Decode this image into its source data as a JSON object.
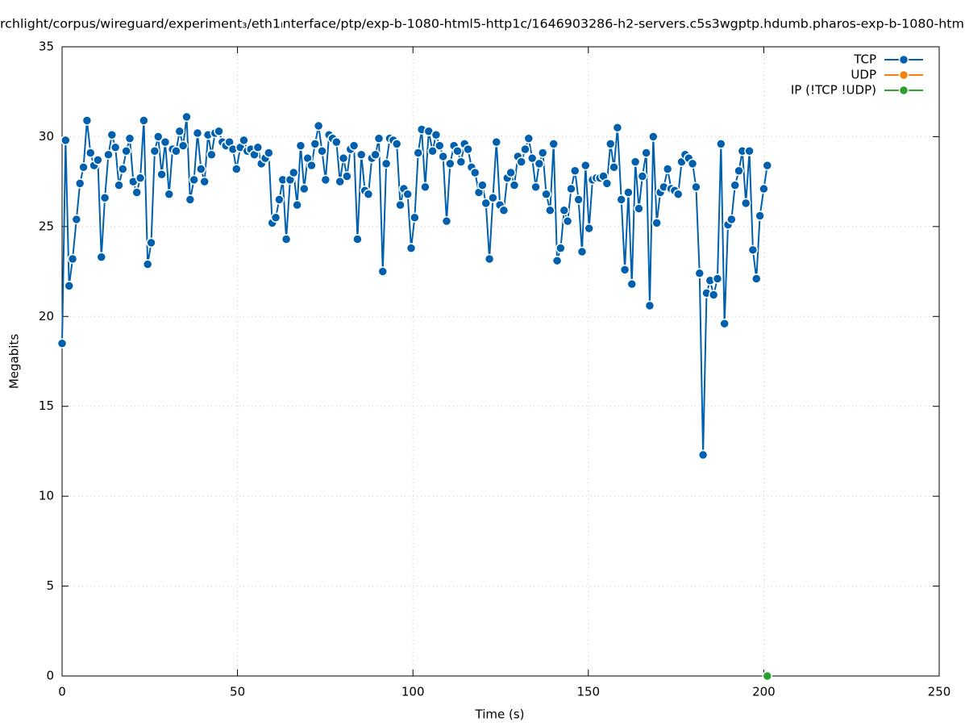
{
  "chart_data": {
    "type": "line",
    "title": "rchlight/corpus/wireguard/experiment₃/eth1ₗnterface/ptp/exp-b-1080-html5-http1c/1646903286-h2-servers.c5s3wgptp.hdumb.pharos-exp-b-1080-htm",
    "x_label": "Time (s)",
    "y_label": "Megabits",
    "xlim": [
      0,
      250
    ],
    "xticks": [
      0,
      50,
      100,
      150,
      200,
      250
    ],
    "ylim": [
      0,
      35
    ],
    "yticks": [
      0,
      5,
      10,
      15,
      20,
      25,
      30,
      35
    ],
    "grid": true,
    "legend": "top-right",
    "series": [
      {
        "name": "TCP",
        "color": "#0060ad",
        "x": [
          0,
          1,
          2,
          3,
          4.1,
          5.1,
          6.1,
          7.1,
          8.1,
          9.1,
          10.2,
          11.2,
          12.2,
          13.2,
          14.2,
          15.2,
          16.2,
          17.3,
          18.3,
          19.3,
          20.3,
          21.3,
          22.3,
          23.3,
          24.4,
          25.4,
          26.4,
          27.4,
          28.4,
          29.4,
          30.5,
          31.5,
          32.5,
          33.5,
          34.5,
          35.5,
          36.5,
          37.6,
          38.6,
          39.6,
          40.6,
          41.6,
          42.6,
          43.6,
          44.7,
          45.7,
          46.7,
          47.7,
          48.7,
          49.7,
          50.8,
          51.8,
          52.8,
          53.8,
          54.8,
          55.8,
          56.8,
          57.9,
          58.9,
          59.9,
          60.9,
          61.9,
          62.9,
          63.9,
          65.0,
          66.0,
          67.0,
          68.0,
          69.0,
          70.0,
          71.1,
          72.1,
          73.1,
          74.1,
          75.1,
          76.1,
          77.1,
          78.2,
          79.2,
          80.2,
          81.2,
          82.2,
          83.2,
          84.2,
          85.3,
          86.3,
          87.3,
          88.3,
          89.3,
          90.3,
          91.4,
          92.4,
          93.4,
          94.4,
          95.4,
          96.4,
          97.4,
          98.5,
          99.5,
          100.5,
          101.5,
          102.5,
          103.5,
          104.5,
          105.6,
          106.6,
          107.6,
          108.6,
          109.6,
          110.6,
          111.7,
          112.7,
          113.7,
          114.7,
          115.7,
          116.7,
          117.7,
          118.8,
          119.8,
          120.8,
          121.8,
          122.8,
          123.8,
          124.8,
          125.9,
          126.9,
          127.9,
          128.9,
          129.9,
          130.9,
          132.0,
          133.0,
          134.0,
          135.0,
          136.0,
          137.0,
          138.0,
          139.1,
          140.1,
          141.1,
          142.1,
          143.1,
          144.1,
          145.1,
          146.2,
          147.2,
          148.2,
          149.2,
          150.2,
          151.2,
          152.3,
          153.3,
          154.3,
          155.3,
          156.3,
          157.3,
          158.3,
          159.4,
          160.4,
          161.4,
          162.4,
          163.4,
          164.4,
          165.4,
          166.5,
          167.5,
          168.5,
          169.5,
          170.5,
          171.5,
          172.6,
          173.6,
          174.6,
          175.6,
          176.6,
          177.6,
          178.6,
          179.7,
          180.7,
          181.7,
          182.7,
          183.7,
          184.7,
          185.7,
          186.8,
          187.8,
          188.8,
          189.8,
          190.8,
          191.8,
          192.9,
          193.9,
          194.9,
          195.9,
          196.9,
          197.9,
          198.9,
          200.0,
          201.0
        ],
        "values": [
          18.5,
          29.8,
          21.7,
          23.2,
          25.4,
          27.4,
          28.3,
          30.9,
          29.1,
          28.4,
          28.7,
          23.3,
          26.6,
          29.0,
          30.1,
          29.4,
          27.3,
          28.2,
          29.2,
          29.9,
          27.5,
          26.9,
          27.7,
          30.9,
          22.9,
          24.1,
          29.2,
          30.0,
          27.9,
          29.7,
          26.8,
          29.3,
          29.2,
          30.3,
          29.5,
          31.1,
          26.5,
          27.6,
          30.2,
          28.2,
          27.5,
          30.1,
          29.0,
          30.2,
          30.3,
          29.7,
          29.5,
          29.7,
          29.3,
          28.2,
          29.4,
          29.8,
          29.2,
          29.3,
          29.0,
          29.4,
          28.5,
          28.8,
          29.1,
          25.2,
          25.5,
          26.5,
          27.6,
          24.3,
          27.6,
          28.0,
          26.2,
          29.5,
          27.1,
          28.8,
          28.4,
          29.6,
          30.6,
          29.2,
          27.6,
          30.1,
          29.9,
          29.7,
          27.5,
          28.8,
          27.8,
          29.3,
          29.5,
          24.3,
          29.0,
          27.0,
          26.8,
          28.8,
          29.0,
          29.9,
          22.5,
          28.5,
          29.9,
          29.8,
          29.6,
          26.2,
          27.1,
          26.8,
          23.8,
          25.5,
          29.1,
          30.4,
          27.2,
          30.3,
          29.2,
          30.1,
          29.5,
          28.9,
          25.3,
          28.5,
          29.5,
          29.2,
          28.6,
          29.6,
          29.3,
          28.3,
          28.0,
          26.9,
          27.3,
          26.3,
          23.2,
          26.6,
          29.7,
          26.2,
          25.9,
          27.7,
          28.0,
          27.3,
          28.9,
          28.6,
          29.3,
          29.9,
          28.8,
          27.2,
          28.5,
          29.1,
          26.8,
          25.9,
          29.6,
          23.1,
          23.8,
          25.9,
          25.3,
          27.1,
          28.1,
          26.5,
          23.6,
          28.4,
          24.9,
          27.6,
          27.7,
          27.7,
          27.8,
          27.4,
          29.6,
          28.3,
          30.5,
          26.5,
          22.6,
          26.9,
          21.8,
          28.6,
          26.0,
          27.8,
          29.1,
          20.6,
          30.0,
          25.2,
          26.9,
          27.2,
          28.2,
          27.1,
          27.0,
          26.8,
          28.6,
          29.0,
          28.8,
          28.5,
          27.2,
          22.4,
          12.3,
          21.3,
          22.0,
          21.2,
          22.1,
          29.6,
          19.6,
          25.1,
          25.4,
          27.3,
          28.1,
          29.2,
          26.3,
          29.2,
          23.7,
          22.1,
          25.6,
          27.1,
          28.4
        ]
      },
      {
        "name": "UDP",
        "color": "#f5800e",
        "x": [],
        "values": []
      },
      {
        "name": "IP (!TCP  !UDP)",
        "color": "#2ca02c",
        "x": [
          201.0
        ],
        "values": [
          0
        ]
      }
    ]
  }
}
